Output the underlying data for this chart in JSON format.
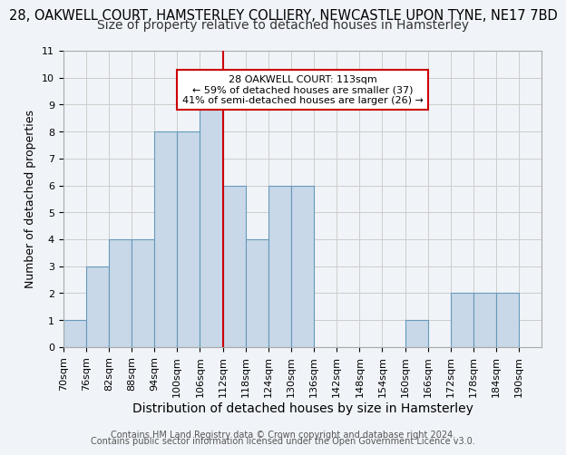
{
  "title_line1": "28, OAKWELL COURT, HAMSTERLEY COLLIERY, NEWCASTLE UPON TYNE, NE17 7BD",
  "title_line2": "Size of property relative to detached houses in Hamsterley",
  "xlabel": "Distribution of detached houses by size in Hamsterley",
  "ylabel": "Number of detached properties",
  "bin_labels": [
    "70sqm",
    "76sqm",
    "82sqm",
    "88sqm",
    "94sqm",
    "100sqm",
    "106sqm",
    "112sqm",
    "118sqm",
    "124sqm",
    "130sqm",
    "136sqm",
    "142sqm",
    "148sqm",
    "154sqm",
    "160sqm",
    "166sqm",
    "172sqm",
    "178sqm",
    "184sqm",
    "190sqm"
  ],
  "bin_edges": [
    70,
    76,
    82,
    88,
    94,
    100,
    106,
    112,
    118,
    124,
    130,
    136,
    142,
    148,
    154,
    160,
    166,
    172,
    178,
    184,
    190
  ],
  "bar_counts": [
    1,
    3,
    4,
    4,
    8,
    8,
    9,
    6,
    4,
    6,
    6,
    0,
    0,
    0,
    0,
    1,
    0,
    2,
    2,
    2
  ],
  "bar_color": "#c8d8e8",
  "bar_edgecolor": "#6699bb",
  "redline_x": 112,
  "annotation_title": "28 OAKWELL COURT: 113sqm",
  "annotation_line1": "← 59% of detached houses are smaller (37)",
  "annotation_line2": "41% of semi-detached houses are larger (26) →",
  "annotation_box_edgecolor": "#cc0000",
  "annotation_box_facecolor": "#ffffff",
  "ylim": [
    0,
    11
  ],
  "yticks": [
    0,
    1,
    2,
    3,
    4,
    5,
    6,
    7,
    8,
    9,
    10,
    11
  ],
  "grid_color": "#cccccc",
  "background_color": "#f0f4f8",
  "footer_line1": "Contains HM Land Registry data © Crown copyright and database right 2024.",
  "footer_line2": "Contains public sector information licensed under the Open Government Licence v3.0.",
  "title1_fontsize": 10.5,
  "title2_fontsize": 10,
  "xlabel_fontsize": 10,
  "ylabel_fontsize": 9,
  "tick_fontsize": 8,
  "footer_fontsize": 7
}
